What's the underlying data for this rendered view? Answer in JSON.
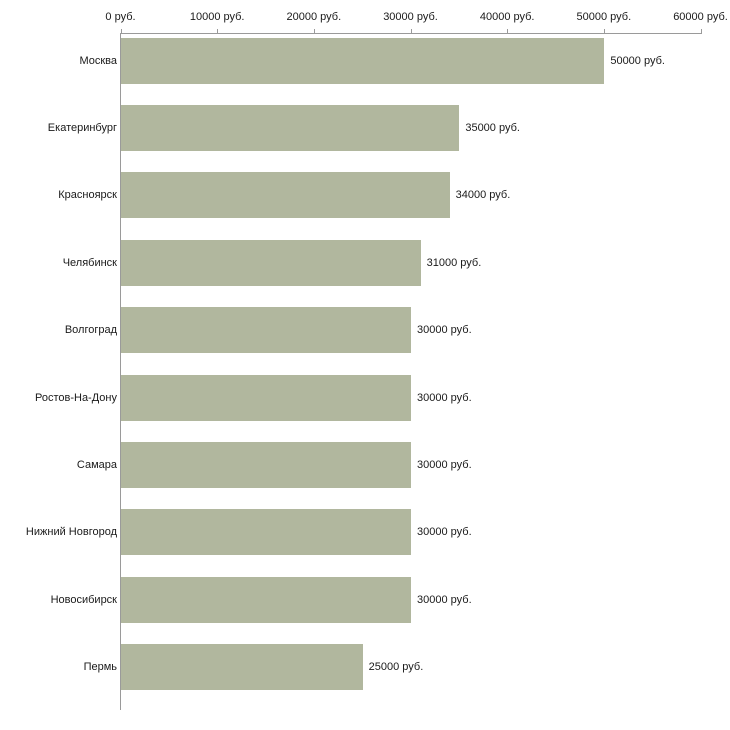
{
  "chart_data": {
    "type": "bar",
    "orientation": "horizontal",
    "title": "",
    "xlabel": "",
    "ylabel": "",
    "categories": [
      "Москва",
      "Екатеринбург",
      "Красноярск",
      "Челябинск",
      "Волгоград",
      "Ростов-На-Дону",
      "Самара",
      "Нижний Новгород",
      "Новосибирск",
      "Пермь"
    ],
    "values": [
      50000,
      35000,
      34000,
      31000,
      30000,
      30000,
      30000,
      30000,
      30000,
      25000
    ],
    "value_labels": [
      "50000 руб.",
      "35000 руб.",
      "34000 руб.",
      "31000 руб.",
      "30000 руб.",
      "30000 руб.",
      "30000 руб.",
      "30000 руб.",
      "30000 руб.",
      "25000 руб."
    ],
    "x_ticks": [
      "0 руб.",
      "10000 руб.",
      "20000 руб.",
      "30000 руб.",
      "40000 руб.",
      "50000 руб.",
      "60000 руб."
    ],
    "xlim": [
      0,
      60000
    ],
    "grid": false,
    "legend": "none",
    "bar_color": "#b1b79e",
    "axis_color": "#9a9a9a",
    "background_color": "#ffffff"
  }
}
